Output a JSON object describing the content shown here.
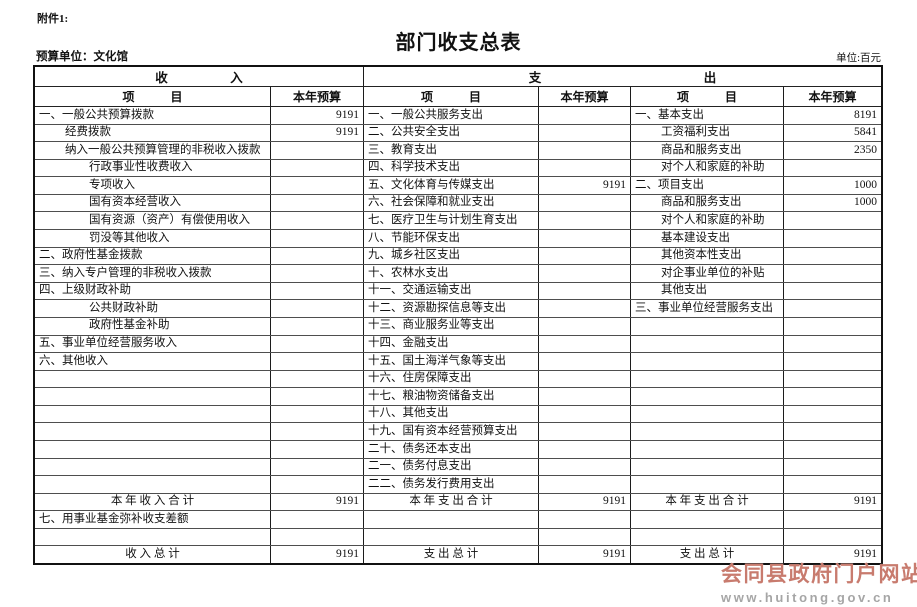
{
  "attachment_label": "附件1:",
  "title": "部门收支总表",
  "budget_unit_label": "预算单位：文化馆",
  "unit_label": "单位:百元",
  "table": {
    "income_header": "收　　　　　入",
    "expenditure_header": "支　　　　　　　　　　　　　出",
    "item_header": "项　　　目",
    "budget_header": "本年预算",
    "rows": [
      {
        "income": {
          "label": "一、一般公共预算拨款",
          "indent": 0,
          "value": "9191"
        },
        "func": {
          "label": "一、一般公共服务支出",
          "value": ""
        },
        "econ": {
          "label": "一、基本支出",
          "indent": 0,
          "value": "8191"
        }
      },
      {
        "income": {
          "label": "经费拨款",
          "indent": 1,
          "value": "9191"
        },
        "func": {
          "label": "二、公共安全支出",
          "value": ""
        },
        "econ": {
          "label": "工资福利支出",
          "indent": 1,
          "value": "5841"
        }
      },
      {
        "income": {
          "label": "纳入一般公共预算管理的非税收入拨款",
          "indent": 1,
          "value": ""
        },
        "func": {
          "label": "三、教育支出",
          "value": ""
        },
        "econ": {
          "label": "商品和服务支出",
          "indent": 1,
          "value": "2350"
        }
      },
      {
        "income": {
          "label": "行政事业性收费收入",
          "indent": 2,
          "value": ""
        },
        "func": {
          "label": "四、科学技术支出",
          "value": ""
        },
        "econ": {
          "label": "对个人和家庭的补助",
          "indent": 1,
          "value": ""
        }
      },
      {
        "income": {
          "label": "专项收入",
          "indent": 2,
          "value": ""
        },
        "func": {
          "label": "五、文化体育与传媒支出",
          "value": "9191"
        },
        "econ": {
          "label": "二、项目支出",
          "indent": 0,
          "value": "1000"
        }
      },
      {
        "income": {
          "label": "国有资本经营收入",
          "indent": 2,
          "value": ""
        },
        "func": {
          "label": "六、社会保障和就业支出",
          "value": ""
        },
        "econ": {
          "label": "商品和服务支出",
          "indent": 1,
          "value": "1000"
        }
      },
      {
        "income": {
          "label": "国有资源（资产）有偿使用收入",
          "indent": 2,
          "value": ""
        },
        "func": {
          "label": "七、医疗卫生与计划生育支出",
          "value": ""
        },
        "econ": {
          "label": "对个人和家庭的补助",
          "indent": 1,
          "value": ""
        }
      },
      {
        "income": {
          "label": "罚没等其他收入",
          "indent": 2,
          "value": ""
        },
        "func": {
          "label": "八、节能环保支出",
          "value": ""
        },
        "econ": {
          "label": "基本建设支出",
          "indent": 1,
          "value": ""
        }
      },
      {
        "income": {
          "label": "二、政府性基金拨款",
          "indent": 0,
          "value": ""
        },
        "func": {
          "label": "九、城乡社区支出",
          "value": ""
        },
        "econ": {
          "label": "其他资本性支出",
          "indent": 1,
          "value": ""
        }
      },
      {
        "income": {
          "label": "三、纳入专户管理的非税收入拨款",
          "indent": 0,
          "value": ""
        },
        "func": {
          "label": "十、农林水支出",
          "value": ""
        },
        "econ": {
          "label": "对企事业单位的补贴",
          "indent": 1,
          "value": ""
        }
      },
      {
        "income": {
          "label": "四、上级财政补助",
          "indent": 0,
          "value": ""
        },
        "func": {
          "label": "十一、交通运输支出",
          "value": ""
        },
        "econ": {
          "label": "其他支出",
          "indent": 1,
          "value": ""
        }
      },
      {
        "income": {
          "label": "公共财政补助",
          "indent": 2,
          "value": ""
        },
        "func": {
          "label": "十二、资源勘探信息等支出",
          "value": ""
        },
        "econ": {
          "label": "三、事业单位经营服务支出",
          "indent": 0,
          "value": ""
        }
      },
      {
        "income": {
          "label": "政府性基金补助",
          "indent": 2,
          "value": ""
        },
        "func": {
          "label": "十三、商业服务业等支出",
          "value": ""
        },
        "econ": {
          "label": "",
          "indent": 0,
          "value": ""
        }
      },
      {
        "income": {
          "label": "五、事业单位经营服务收入",
          "indent": 0,
          "value": ""
        },
        "func": {
          "label": "十四、金融支出",
          "value": ""
        },
        "econ": {
          "label": "",
          "indent": 0,
          "value": ""
        }
      },
      {
        "income": {
          "label": "六、其他收入",
          "indent": 0,
          "value": ""
        },
        "func": {
          "label": "十五、国土海洋气象等支出",
          "value": ""
        },
        "econ": {
          "label": "",
          "indent": 0,
          "value": ""
        }
      },
      {
        "income": {
          "label": "",
          "indent": 0,
          "value": ""
        },
        "func": {
          "label": "十六、住房保障支出",
          "value": ""
        },
        "econ": {
          "label": "",
          "indent": 0,
          "value": ""
        }
      },
      {
        "income": {
          "label": "",
          "indent": 0,
          "value": ""
        },
        "func": {
          "label": "十七、粮油物资储备支出",
          "value": ""
        },
        "econ": {
          "label": "",
          "indent": 0,
          "value": ""
        }
      },
      {
        "income": {
          "label": "",
          "indent": 0,
          "value": ""
        },
        "func": {
          "label": "十八、其他支出",
          "value": ""
        },
        "econ": {
          "label": "",
          "indent": 0,
          "value": ""
        }
      },
      {
        "income": {
          "label": "",
          "indent": 0,
          "value": ""
        },
        "func": {
          "label": "十九、国有资本经营预算支出",
          "value": ""
        },
        "econ": {
          "label": "",
          "indent": 0,
          "value": ""
        }
      },
      {
        "income": {
          "label": "",
          "indent": 0,
          "value": ""
        },
        "func": {
          "label": "二十、债务还本支出",
          "value": ""
        },
        "econ": {
          "label": "",
          "indent": 0,
          "value": ""
        }
      },
      {
        "income": {
          "label": "",
          "indent": 0,
          "value": ""
        },
        "func": {
          "label": "二一、债务付息支出",
          "value": ""
        },
        "econ": {
          "label": "",
          "indent": 0,
          "value": ""
        }
      },
      {
        "income": {
          "label": "",
          "indent": 0,
          "value": ""
        },
        "func": {
          "label": "二二、债务发行费用支出",
          "value": ""
        },
        "econ": {
          "label": "",
          "indent": 0,
          "value": ""
        }
      },
      {
        "income": {
          "label": "本 年 收 入 合 计",
          "center": true,
          "value": "9191"
        },
        "func": {
          "label": "本 年 支 出 合 计",
          "center": true,
          "value": "9191"
        },
        "econ": {
          "label": "本 年 支 出 合 计",
          "center": true,
          "value": "9191"
        }
      },
      {
        "income": {
          "label": "七、用事业基金弥补收支差额",
          "indent": 0,
          "value": ""
        },
        "func": {
          "label": "",
          "value": ""
        },
        "econ": {
          "label": "",
          "indent": 0,
          "value": ""
        }
      },
      {
        "income": {
          "label": "",
          "indent": 0,
          "value": ""
        },
        "func": {
          "label": "",
          "value": ""
        },
        "econ": {
          "label": "",
          "indent": 0,
          "value": ""
        }
      },
      {
        "income": {
          "label": "收 入 总 计",
          "center": true,
          "value": "9191"
        },
        "func": {
          "label": "支 出 总 计",
          "center": true,
          "value": "9191"
        },
        "econ": {
          "label": "支 出 总 计",
          "center": true,
          "value": "9191"
        }
      }
    ]
  },
  "watermark": {
    "site_name": "会同县政府门户网站",
    "site_url": "www.huitong.gov.cn",
    "name_color": "#c87b6e",
    "url_color": "#a6a6a6"
  }
}
